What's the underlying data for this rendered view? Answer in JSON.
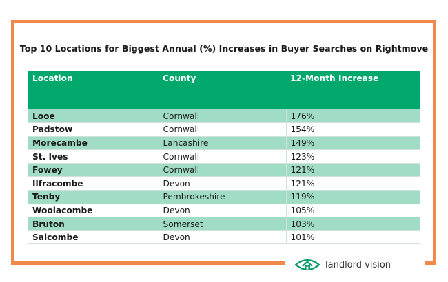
{
  "title": "Top 10 Locations for Biggest Annual (%) Increases in Buyer Searches on Rightmove",
  "table": {
    "headers": [
      "Location",
      "County",
      "12-Month Increase"
    ],
    "rows": [
      [
        "Looe",
        "Cornwall",
        "176%"
      ],
      [
        "Padstow",
        "Cornwall",
        "154%"
      ],
      [
        "Morecambe",
        "Lancashire",
        "149%"
      ],
      [
        "St. Ives",
        "Cornwall",
        "123%"
      ],
      [
        "Fowey",
        "Cornwall",
        "121%"
      ],
      [
        "Ilfracombe",
        "Devon",
        "121%"
      ],
      [
        "Tenby",
        "Pembrokeshire",
        "119%"
      ],
      [
        "Woolacombe",
        "Devon",
        "105%"
      ],
      [
        "Bruton",
        "Somerset",
        "103%"
      ],
      [
        "Salcombe",
        "Devon",
        "101%"
      ]
    ]
  },
  "brand": {
    "name": "landlord vision",
    "logo_icon": "eye-house-logo-icon"
  },
  "colors": {
    "frame": "#f08a4b",
    "header": "#00a86b",
    "stripe": "#a0dcc6",
    "logo": "#0a9b6a"
  }
}
